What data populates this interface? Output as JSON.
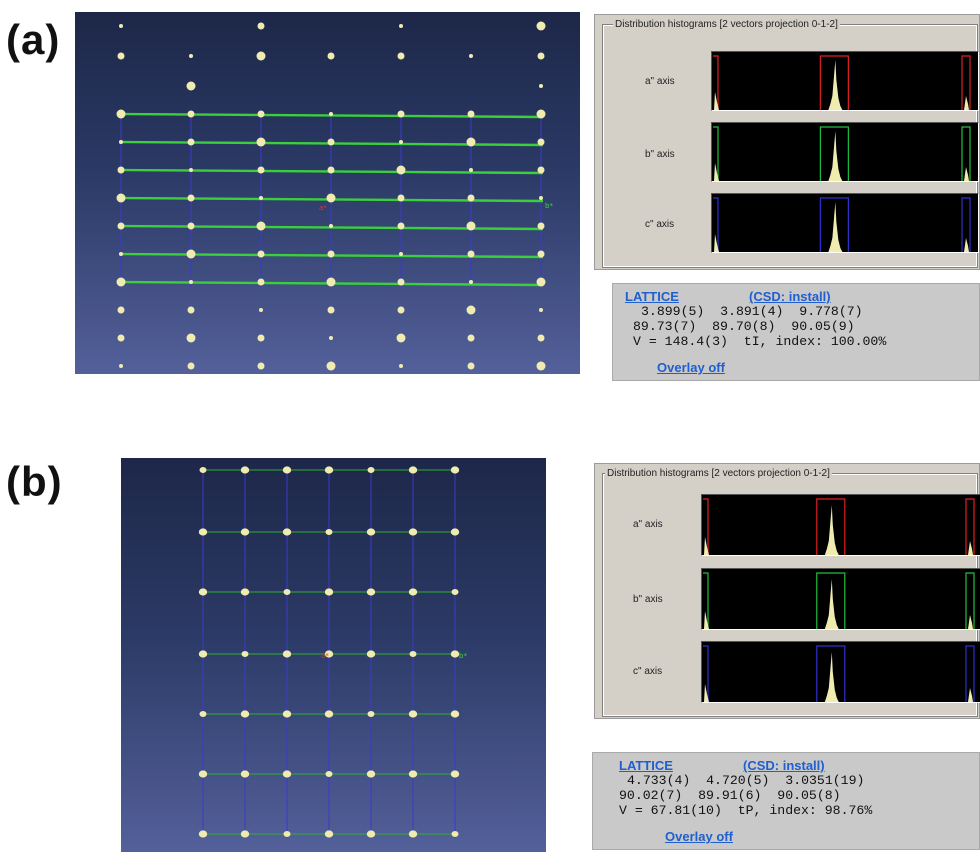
{
  "panels": [
    {
      "label": "(a)",
      "histogram": {
        "title": "Distribution histograms [2 vectors projection 0-1-2]",
        "rows": [
          {
            "axis_label": "a\" axis",
            "color": "#e02020"
          },
          {
            "axis_label": "b\" axis",
            "color": "#20c040"
          },
          {
            "axis_label": "c\" axis",
            "color": "#3030d0"
          }
        ]
      },
      "lattice": {
        "title_link": "LATTICE",
        "csd_link": "(CSD: install)",
        "lengths": "3.899(5)  3.891(4)  9.778(7)",
        "angles": "89.73(7)  89.70(8)  90.05(9)",
        "volume": "V = 148.4(3)  tI, index: 100.00%",
        "overlay_link": "Overlay off"
      },
      "viewport_labels": {
        "center": "a*",
        "right": "b*"
      }
    },
    {
      "label": "(b)",
      "histogram": {
        "title": "Distribution histograms [2 vectors projection 0-1-2]",
        "rows": [
          {
            "axis_label": "a\" axis",
            "color": "#e02020"
          },
          {
            "axis_label": "b\" axis",
            "color": "#20c040"
          },
          {
            "axis_label": "c\" axis",
            "color": "#3030d0"
          }
        ]
      },
      "lattice": {
        "title_link": "LATTICE",
        "csd_link": "(CSD: install)",
        "lengths": "4.733(4)  4.720(5)  3.0351(19)",
        "angles": "90.02(7)  89.91(6)  90.05(8)",
        "volume": "V = 67.81(10)  tP, index: 98.76%",
        "overlay_link": "Overlay off"
      },
      "viewport_labels": {
        "center": "a*",
        "right": "b*"
      }
    }
  ],
  "colors": {
    "spot": "#f0ecb0",
    "grid_green_a": "#3ccf3c",
    "grid_green_b": "#2fae2f",
    "grid_blue": "#3a3acc",
    "link": "#1f5fcf"
  }
}
